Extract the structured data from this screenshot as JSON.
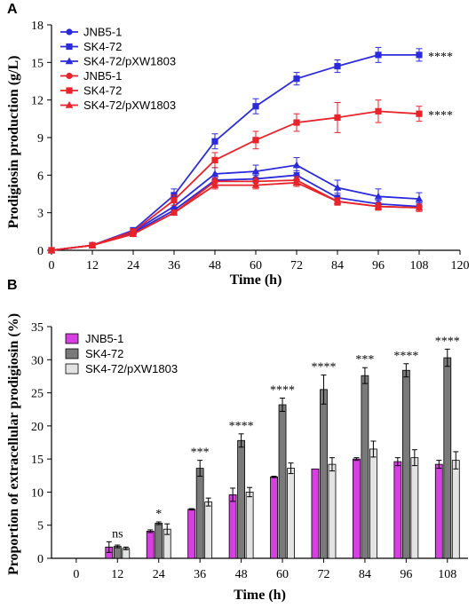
{
  "chart_data": [
    {
      "panel": "A",
      "type": "line",
      "xlabel": "Time (h)",
      "ylabel": "Prodigiosin production (g/L)",
      "xlim": [
        0,
        120
      ],
      "ylim": [
        0,
        18
      ],
      "xticks": [
        0,
        12,
        24,
        36,
        48,
        60,
        72,
        84,
        96,
        108,
        120
      ],
      "yticks": [
        0,
        3,
        6,
        9,
        12,
        15,
        18
      ],
      "legend_position": "top-left",
      "x": [
        0,
        12,
        24,
        36,
        48,
        60,
        72,
        84,
        96,
        108
      ],
      "series": [
        {
          "name": "JNB5-1",
          "color": "#2b2bdc",
          "marker": "circle",
          "values": [
            0,
            0.4,
            1.4,
            3.2,
            5.6,
            5.7,
            6.0,
            4.2,
            3.7,
            3.5
          ],
          "errors": [
            0.05,
            0.1,
            0.15,
            0.25,
            0.35,
            0.3,
            0.35,
            0.35,
            0.3,
            0.3
          ]
        },
        {
          "name": "SK4-72",
          "color": "#2b2bdc",
          "marker": "square",
          "values": [
            0,
            0.4,
            1.6,
            4.4,
            8.7,
            11.5,
            13.7,
            14.7,
            15.6,
            15.6
          ],
          "errors": [
            0.05,
            0.1,
            0.2,
            0.5,
            0.6,
            0.6,
            0.5,
            0.5,
            0.6,
            0.5
          ]
        },
        {
          "name": "SK4-72/pXW1803",
          "color": "#2b2bdc",
          "marker": "triangle",
          "values": [
            0,
            0.4,
            1.5,
            3.5,
            6.1,
            6.3,
            6.8,
            5.0,
            4.3,
            4.1
          ],
          "errors": [
            0.05,
            0.1,
            0.2,
            0.3,
            0.5,
            0.5,
            0.6,
            0.6,
            0.6,
            0.5
          ]
        },
        {
          "name": "JNB5-1",
          "color": "#e8232a",
          "marker": "circle",
          "values": [
            0,
            0.4,
            1.3,
            3.0,
            5.5,
            5.5,
            5.6,
            3.9,
            3.5,
            3.4
          ],
          "errors": [
            0.05,
            0.1,
            0.15,
            0.2,
            0.3,
            0.3,
            0.3,
            0.25,
            0.25,
            0.2
          ]
        },
        {
          "name": "SK4-72",
          "color": "#e8232a",
          "marker": "square",
          "values": [
            0,
            0.4,
            1.5,
            4.0,
            7.2,
            8.8,
            10.2,
            10.6,
            11.1,
            10.9
          ],
          "errors": [
            0.05,
            0.1,
            0.2,
            0.4,
            0.6,
            0.7,
            0.7,
            1.2,
            0.9,
            0.6
          ]
        },
        {
          "name": "SK4-72/pXW1803",
          "color": "#e8232a",
          "marker": "square-filled-triangle",
          "values": [
            0,
            0.4,
            1.3,
            3.0,
            5.2,
            5.2,
            5.4,
            3.9,
            3.5,
            3.4
          ],
          "errors": [
            0.05,
            0.1,
            0.15,
            0.2,
            0.3,
            0.3,
            0.3,
            0.3,
            0.3,
            0.3
          ]
        }
      ],
      "annotations": [
        {
          "text": "****",
          "x": 108,
          "y": 15.6
        },
        {
          "text": "****",
          "x": 108,
          "y": 10.9
        }
      ]
    },
    {
      "panel": "B",
      "type": "bar",
      "xlabel": "Time (h)",
      "ylabel": "Proportion of extracellular prodigiosin (%)",
      "ylim": [
        0,
        35
      ],
      "yticks": [
        0,
        5,
        10,
        15,
        20,
        25,
        30,
        35
      ],
      "categories": [
        "0",
        "12",
        "24",
        "36",
        "48",
        "60",
        "72",
        "84",
        "96",
        "108"
      ],
      "legend_position": "top-left",
      "series": [
        {
          "name": "JNB5-1",
          "color": "#d63fe0",
          "values": [
            0,
            1.7,
            4.1,
            7.4,
            9.6,
            12.3,
            13.5,
            15.0,
            14.6,
            14.2
          ],
          "errors": [
            0,
            0.8,
            0.2,
            0.1,
            1.0,
            0.1,
            0.0,
            0.2,
            0.6,
            0.6
          ]
        },
        {
          "name": "SK4-72",
          "color": "#7a7a7a",
          "values": [
            0,
            1.8,
            5.3,
            13.6,
            17.8,
            23.2,
            25.5,
            27.6,
            28.4,
            30.3
          ],
          "errors": [
            0,
            0.2,
            0.2,
            1.2,
            1.0,
            1.0,
            2.2,
            1.2,
            1.0,
            1.3
          ]
        },
        {
          "name": "SK4-72/pXW1803",
          "color": "#e3e3e3",
          "values": [
            0,
            1.5,
            4.4,
            8.5,
            10.0,
            13.6,
            14.2,
            16.5,
            15.2,
            14.8
          ],
          "errors": [
            0,
            0.2,
            0.8,
            0.6,
            0.7,
            0.8,
            1.0,
            1.2,
            1.2,
            1.3
          ]
        }
      ],
      "significance": [
        "",
        "ns",
        "*",
        "***",
        "****",
        "****",
        "****",
        "***",
        "****",
        "****"
      ]
    }
  ]
}
